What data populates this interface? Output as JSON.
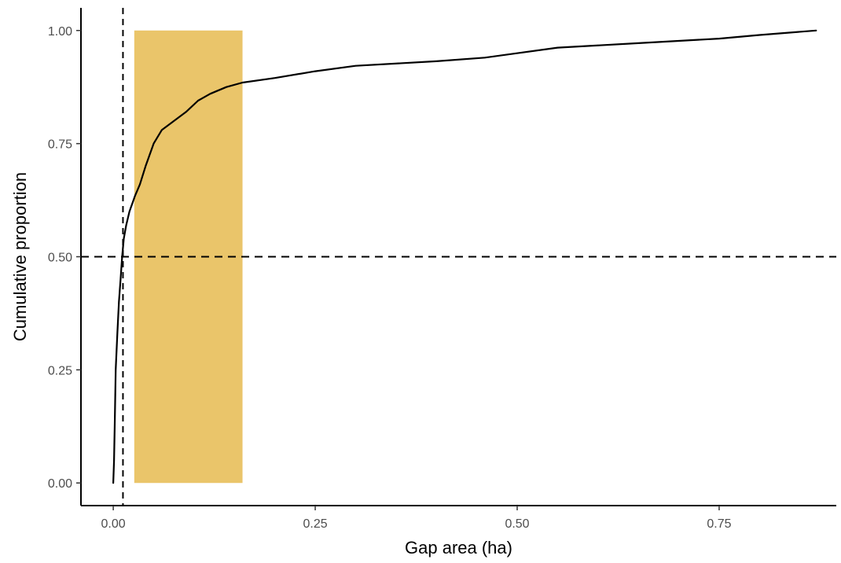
{
  "chart_data": {
    "type": "line",
    "title": "",
    "xlabel": "Gap area (ha)",
    "ylabel": "Cumulative proportion",
    "xlim": [
      -0.04,
      0.895
    ],
    "ylim": [
      -0.05,
      1.05
    ],
    "x_ticks": [
      0.0,
      0.25,
      0.5,
      0.75
    ],
    "x_tick_labels": [
      "0.00",
      "0.25",
      "0.50",
      "0.75"
    ],
    "y_ticks": [
      0.0,
      0.25,
      0.5,
      0.75,
      1.0
    ],
    "y_tick_labels": [
      "0.00",
      "0.25",
      "0.50",
      "0.75",
      "1.00"
    ],
    "grid": false,
    "series": [
      {
        "type": "step-line",
        "color": "#000000",
        "points": [
          [
            0.0,
            0.0
          ],
          [
            0.001,
            0.05
          ],
          [
            0.002,
            0.15
          ],
          [
            0.003,
            0.25
          ],
          [
            0.005,
            0.33
          ],
          [
            0.007,
            0.4
          ],
          [
            0.009,
            0.45
          ],
          [
            0.011,
            0.5
          ],
          [
            0.013,
            0.54
          ],
          [
            0.016,
            0.57
          ],
          [
            0.02,
            0.6
          ],
          [
            0.027,
            0.635
          ],
          [
            0.033,
            0.66
          ],
          [
            0.04,
            0.7
          ],
          [
            0.05,
            0.75
          ],
          [
            0.06,
            0.78
          ],
          [
            0.075,
            0.8
          ],
          [
            0.09,
            0.82
          ],
          [
            0.105,
            0.845
          ],
          [
            0.12,
            0.86
          ],
          [
            0.14,
            0.875
          ],
          [
            0.16,
            0.885
          ],
          [
            0.2,
            0.895
          ],
          [
            0.25,
            0.91
          ],
          [
            0.3,
            0.922
          ],
          [
            0.4,
            0.932
          ],
          [
            0.46,
            0.94
          ],
          [
            0.55,
            0.962
          ],
          [
            0.65,
            0.972
          ],
          [
            0.75,
            0.982
          ],
          [
            0.8,
            0.99
          ],
          [
            0.87,
            1.0
          ]
        ]
      }
    ],
    "highlight_band": {
      "x_range": [
        0.026,
        0.16
      ],
      "y_range": [
        0.0,
        1.0
      ],
      "color": "#eac56a"
    },
    "reference_lines": [
      {
        "orientation": "vertical",
        "value": 0.012,
        "style": "dashed",
        "color": "#000000"
      },
      {
        "orientation": "horizontal",
        "value": 0.5,
        "style": "dashed",
        "color": "#000000"
      }
    ]
  }
}
